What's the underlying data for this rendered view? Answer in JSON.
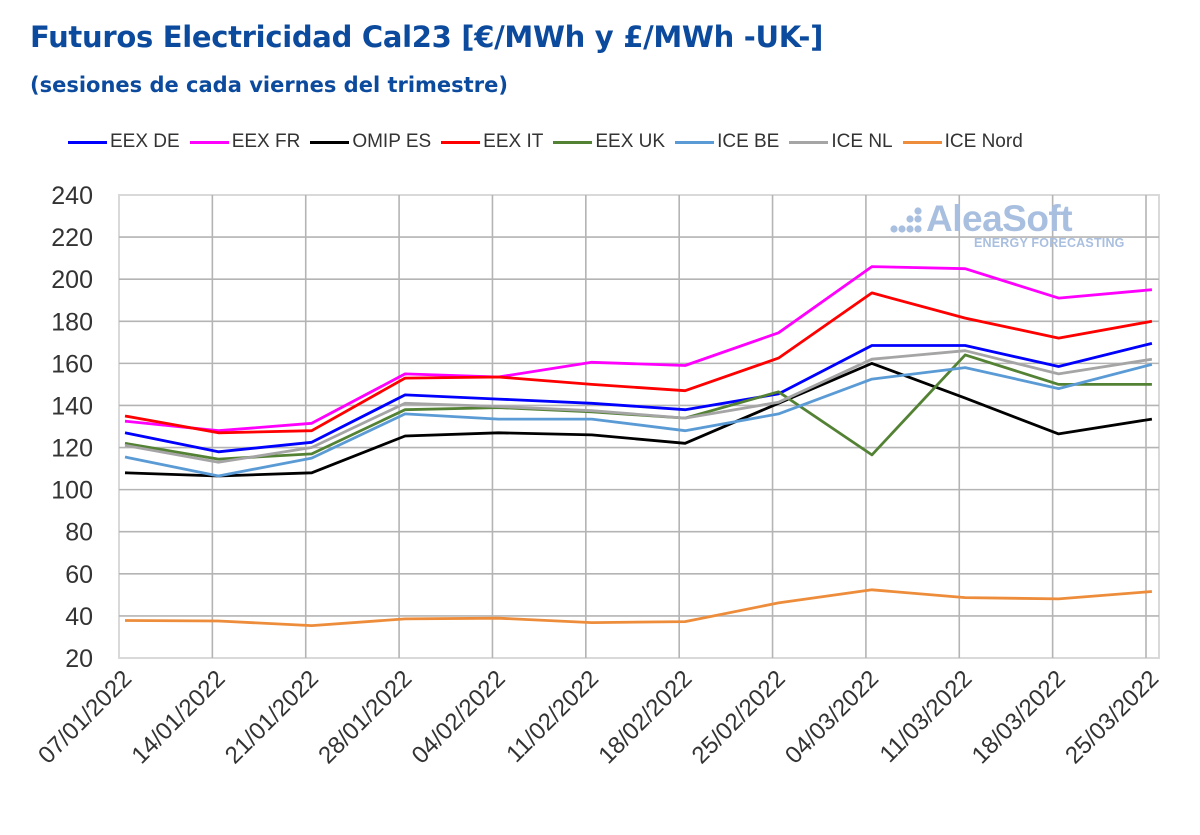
{
  "chart_data": {
    "type": "line",
    "title": "Futuros Electricidad Cal23 [€/MWh y £/MWh -UK-]",
    "subtitle": "(sesiones de cada viernes del trimestre)",
    "xlabel": "",
    "ylabel": "",
    "ylim": [
      20,
      240
    ],
    "yticks": [
      20,
      40,
      60,
      80,
      100,
      120,
      140,
      160,
      180,
      200,
      220,
      240
    ],
    "grid": true,
    "legend_position": "top",
    "categories": [
      "07/01/2022",
      "14/01/2022",
      "21/01/2022",
      "28/01/2022",
      "04/02/2022",
      "11/02/2022",
      "18/02/2022",
      "25/02/2022",
      "04/03/2022",
      "11/03/2022",
      "18/03/2022",
      "25/03/2022"
    ],
    "series": [
      {
        "name": "EEX DE",
        "color": "#0000ff",
        "values": [
          127,
          118,
          122.5,
          145,
          143,
          141,
          138,
          145.5,
          168.5,
          168.5,
          158.5,
          169.5
        ]
      },
      {
        "name": "EEX FR",
        "color": "#ff00ff",
        "values": [
          132.5,
          128,
          131.5,
          155,
          153.5,
          160.5,
          159,
          174.5,
          206,
          205,
          191,
          195
        ]
      },
      {
        "name": "OMIP ES",
        "color": "#000000",
        "values": [
          108,
          106.5,
          108,
          125.5,
          127,
          126,
          122,
          141,
          160,
          143.5,
          126.5,
          133.5
        ]
      },
      {
        "name": "EEX IT",
        "color": "#ff0000",
        "values": [
          135,
          127,
          128,
          153,
          153.5,
          150,
          147,
          162.5,
          193.5,
          181.5,
          172,
          180
        ]
      },
      {
        "name": "EEX UK",
        "color": "#548235",
        "values": [
          122,
          114.5,
          117,
          138,
          139,
          137,
          134,
          146.5,
          116.5,
          164,
          150,
          150
        ]
      },
      {
        "name": "ICE BE",
        "color": "#5b9bd5",
        "values": [
          115.5,
          106.5,
          115,
          136,
          133.5,
          133.5,
          128,
          136,
          152.5,
          158,
          148,
          159.5
        ]
      },
      {
        "name": "ICE NL",
        "color": "#a5a5a5",
        "values": [
          121,
          113,
          120,
          141,
          139.5,
          137.5,
          134,
          141.5,
          162,
          166,
          155,
          162
        ]
      },
      {
        "name": "ICE Nord",
        "color": "#ed8d3b",
        "values": [
          37.8,
          37.6,
          35.4,
          38.6,
          38.9,
          36.8,
          37.3,
          46.2,
          52.4,
          48.7,
          48.1,
          51.6
        ]
      }
    ]
  },
  "watermark": {
    "name": "AleaSoft",
    "tagline": "ENERGY FORECASTING",
    "color": "#a9bfe0"
  },
  "colors": {
    "title": "#0b4a9c",
    "grid": "#b4b4b4",
    "axis_text": "#333333"
  }
}
